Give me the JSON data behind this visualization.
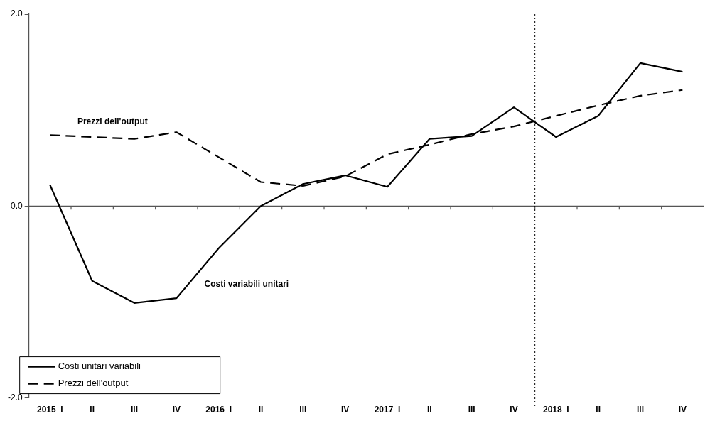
{
  "chart_data": {
    "type": "line",
    "categories": [
      "2015  I",
      "II",
      "III",
      "IV",
      "2016  I",
      "II",
      "III",
      "IV",
      "2017  I",
      "II",
      "III",
      "IV",
      "2018  I",
      "II",
      "III",
      "IV"
    ],
    "series": [
      {
        "name": "Costi unitari variabili",
        "color": "#000000",
        "line_style": "solid",
        "values": [
          0.22,
          -0.78,
          -1.01,
          -0.96,
          -0.44,
          0.0,
          0.23,
          0.32,
          0.2,
          0.7,
          0.73,
          1.03,
          0.72,
          0.94,
          1.49,
          1.4
        ]
      },
      {
        "name": "Prezzi dell'output",
        "color": "#000000",
        "line_style": "dashed",
        "values": [
          0.74,
          0.72,
          0.7,
          0.77,
          0.51,
          0.25,
          0.21,
          0.31,
          0.54,
          0.64,
          0.75,
          0.83,
          0.94,
          1.05,
          1.15,
          1.21
        ]
      }
    ],
    "ylim": [
      -2,
      2
    ],
    "yticks": [
      {
        "value": -2,
        "label": "-2.0"
      },
      {
        "value": 0,
        "label": "0.0"
      },
      {
        "value": 2,
        "label": "2.0"
      }
    ],
    "ref_lines": [
      {
        "axis": "x",
        "value": "2018  I",
        "line_style": "dotted",
        "color": "#000000"
      }
    ],
    "annotations": [
      "Prezzi dell'output",
      "Costi variabili unitari"
    ],
    "grid": false,
    "legend": "bottom left",
    "marker": "none"
  }
}
